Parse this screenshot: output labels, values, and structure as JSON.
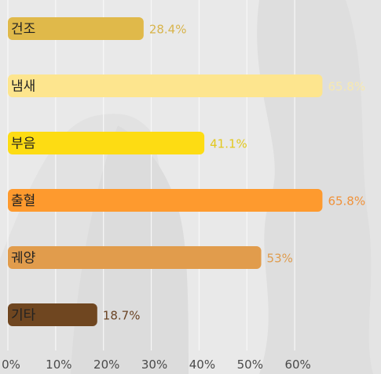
{
  "chart_data": {
    "type": "bar",
    "orientation": "horizontal",
    "categories": [
      "건조",
      "냄새",
      "부음",
      "출혈",
      "궤양",
      "기타"
    ],
    "values": [
      28.4,
      65.8,
      41.1,
      65.8,
      53,
      18.7
    ],
    "value_labels": [
      "28.4%",
      "65.8%",
      "41.1%",
      "65.8%",
      "53%",
      "18.7%"
    ],
    "bar_colors": [
      "#e0b94a",
      "#fde58e",
      "#fddc13",
      "#fe9a2e",
      "#e19c4c",
      "#6f4620"
    ],
    "value_label_colors": [
      "#d8b44c",
      "#f7e9b0",
      "#e2c81e",
      "#f0923a",
      "#df9c4e",
      "#6a4424"
    ],
    "xlim": [
      0,
      70
    ],
    "xticks": [
      0,
      10,
      20,
      30,
      40,
      50,
      60
    ],
    "xtick_labels": [
      "0%",
      "10%",
      "20%",
      "30%",
      "40%",
      "50%",
      "60%"
    ],
    "grid": true,
    "title": "",
    "xlabel": "",
    "ylabel": ""
  }
}
